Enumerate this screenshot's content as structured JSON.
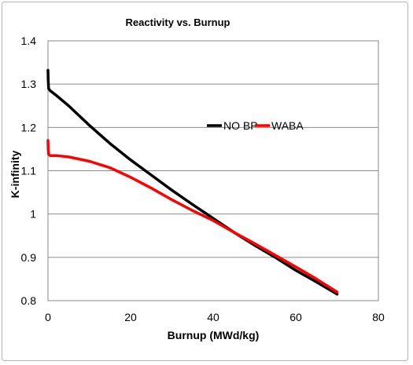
{
  "chart_data": {
    "type": "line",
    "title": "Reactivity vs. Burnup",
    "xlabel": "Burnup (MWd/kg)",
    "ylabel": "K-infinity",
    "xlim": [
      0,
      80
    ],
    "ylim": [
      0.8,
      1.4
    ],
    "x_ticks": [
      "0",
      "20",
      "40",
      "60",
      "80"
    ],
    "y_ticks": [
      "0.8",
      "0.9",
      "1",
      "1.1",
      "1.2",
      "1.3",
      "1.4"
    ],
    "grid": "horizontal",
    "legend_position": "inside-right",
    "series": [
      {
        "name": "NO BP",
        "color": "#000000",
        "points": [
          [
            0,
            1.332
          ],
          [
            0.05,
            1.31
          ],
          [
            0.15,
            1.29
          ],
          [
            0.5,
            1.285
          ],
          [
            2,
            1.274
          ],
          [
            5,
            1.25
          ],
          [
            10,
            1.205
          ],
          [
            15,
            1.163
          ],
          [
            20,
            1.125
          ],
          [
            25,
            1.09
          ],
          [
            30,
            1.055
          ],
          [
            35,
            1.022
          ],
          [
            40,
            0.99
          ],
          [
            45,
            0.958
          ],
          [
            50,
            0.928
          ],
          [
            55,
            0.9
          ],
          [
            60,
            0.87
          ],
          [
            65,
            0.843
          ],
          [
            70,
            0.815
          ]
        ]
      },
      {
        "name": "WABA",
        "color": "#ff0000",
        "points": [
          [
            0,
            1.17
          ],
          [
            0.05,
            1.15
          ],
          [
            0.15,
            1.138
          ],
          [
            0.5,
            1.135
          ],
          [
            2,
            1.135
          ],
          [
            5,
            1.132
          ],
          [
            10,
            1.122
          ],
          [
            15,
            1.107
          ],
          [
            20,
            1.085
          ],
          [
            25,
            1.06
          ],
          [
            30,
            1.033
          ],
          [
            35,
            1.008
          ],
          [
            40,
            0.985
          ],
          [
            45,
            0.958
          ],
          [
            50,
            0.932
          ],
          [
            55,
            0.905
          ],
          [
            60,
            0.878
          ],
          [
            65,
            0.85
          ],
          [
            70,
            0.82
          ]
        ]
      }
    ]
  }
}
